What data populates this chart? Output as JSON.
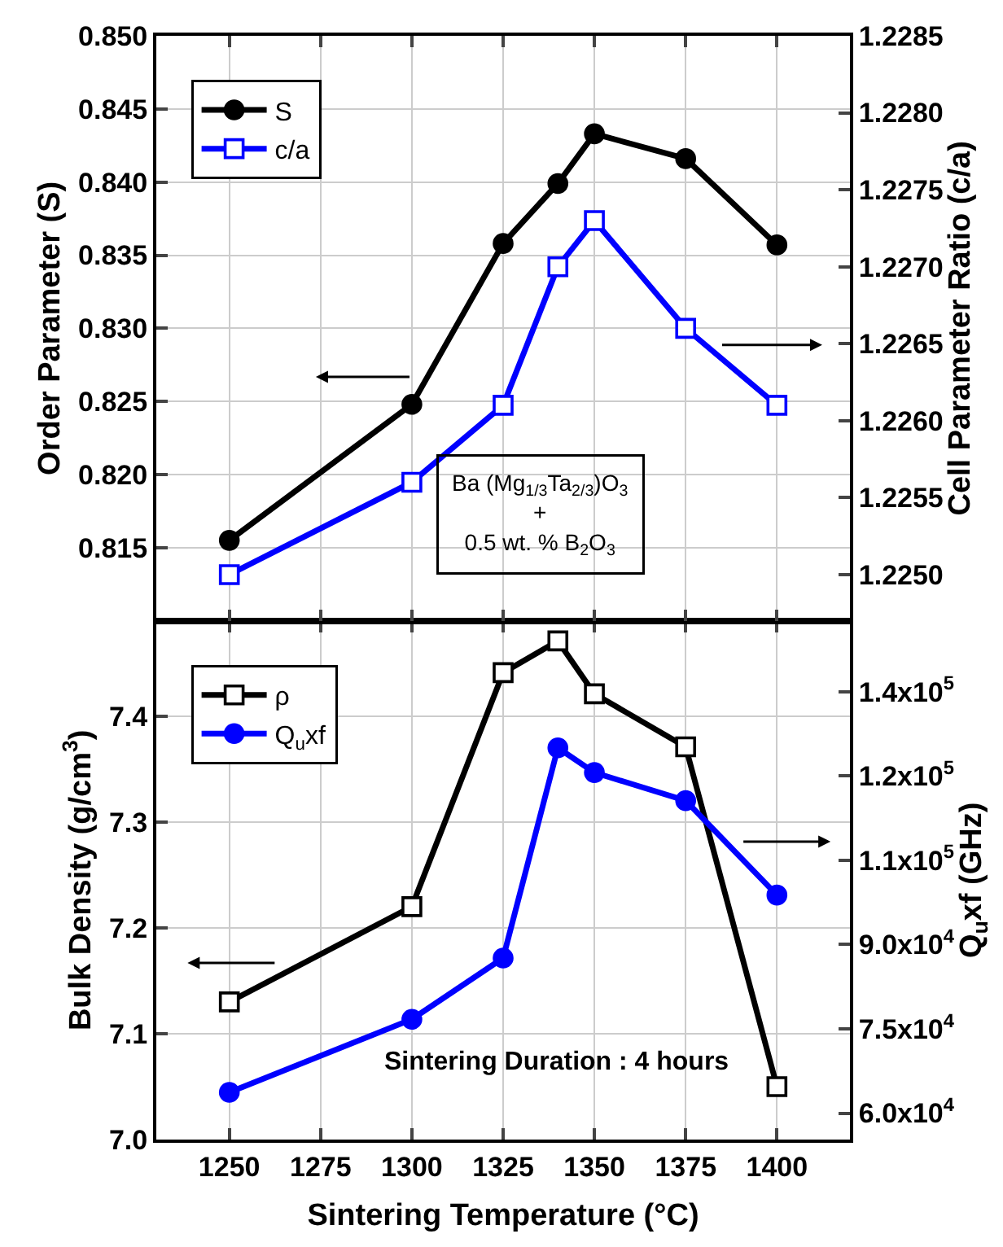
{
  "chart_data": [
    {
      "type": "line",
      "x": [
        1250,
        1300,
        1325,
        1340,
        1350,
        1375,
        1400
      ],
      "ylabel": "Order Parameter (S)",
      "y2label": "Cell Parameter Ratio (c/a)",
      "series": [
        {
          "name": "S",
          "color": "#000000",
          "marker": "circle",
          "values": [
            0.8155,
            0.8248,
            0.8358,
            0.8399,
            0.8433,
            0.8416,
            0.8357
          ]
        },
        {
          "name": "c/a",
          "color": "#0000ff",
          "marker": "square",
          "axis": "y2",
          "values": [
            1.225,
            1.2256,
            1.2261,
            1.227,
            1.2273,
            1.2266,
            1.2261
          ]
        }
      ],
      "xlim": [
        1230,
        1420
      ],
      "xticks": [
        1250,
        1275,
        1300,
        1325,
        1350,
        1375,
        1400
      ],
      "ylim": [
        0.81,
        0.85
      ],
      "yticks": [
        0.815,
        {
          "value": 0.82,
          "label": "0.820"
        },
        0.825,
        {
          "value": 0.83,
          "label": "0.830"
        },
        0.835,
        {
          "value": 0.84,
          "label": "0.840"
        },
        0.845,
        {
          "value": 0.85,
          "label": "0.850"
        }
      ],
      "y2lim": [
        1.2247,
        1.2285
      ],
      "y2ticks": [
        {
          "value": 1.225,
          "label": "1.2250"
        },
        1.2255,
        {
          "value": 1.226,
          "label": "1.2260"
        },
        1.2265,
        {
          "value": 1.227,
          "label": "1.2270"
        },
        1.2275,
        {
          "value": 1.228,
          "label": "1.2280"
        },
        1.2285
      ],
      "annotations": [
        "Ba (Mg$_{1/3}$Ta$_{2/3}$)O$_{3}$\n+\n0.5 wt. % B$_{2}$O$_{3}$"
      ],
      "tick_labels": "y",
      "grid": true,
      "legend": "top left",
      "line_style": "solid"
    },
    {
      "type": "line",
      "x": [
        1250,
        1300,
        1325,
        1340,
        1350,
        1375,
        1400
      ],
      "xlabel": "Sintering Temperature (°C)",
      "ylabel": "Bulk Density (g/cm$^{3}$)",
      "y2label": "Q$_{u}$xf (GHz)",
      "series": [
        {
          "name": "ρ",
          "color": "#000000",
          "marker": "square",
          "values": [
            7.13,
            7.22,
            7.441,
            7.471,
            7.421,
            7.371,
            7.05
          ]
        },
        {
          "name": "Q$_{u}$xf",
          "color": "#0000ff",
          "marker": "circle",
          "axis": "y2",
          "values": [
            63700,
            76700,
            87600,
            125000,
            120600,
            115600,
            98800
          ]
        }
      ],
      "xlim": [
        1230,
        1420
      ],
      "xticks": [
        1250,
        1275,
        1300,
        1325,
        1350,
        1375,
        1400
      ],
      "ylim": [
        7.0,
        7.49
      ],
      "yticks": [
        {
          "value": 7.0,
          "label": "7.0"
        },
        7.1,
        7.2,
        7.3,
        7.4
      ],
      "y2lim": [
        55300,
        147600
      ],
      "y2ticks": [
        {
          "value": 60000,
          "label": "6.0x10$^{4}$"
        },
        {
          "value": 75000,
          "label": "7.5x10$^{4}$"
        },
        {
          "value": 90000,
          "label": "9.0x10$^{4}$"
        },
        {
          "value": 105000,
          "label": "1.1x10$^{5}$"
        },
        {
          "value": 120000,
          "label": "1.2x10$^{5}$"
        },
        {
          "value": 135000,
          "label": "1.4x10$^{5}$"
        }
      ],
      "annotations": [
        "Sintering Duration : 4 hours"
      ],
      "grid": true,
      "legend": "top left",
      "line_style": "solid"
    }
  ]
}
